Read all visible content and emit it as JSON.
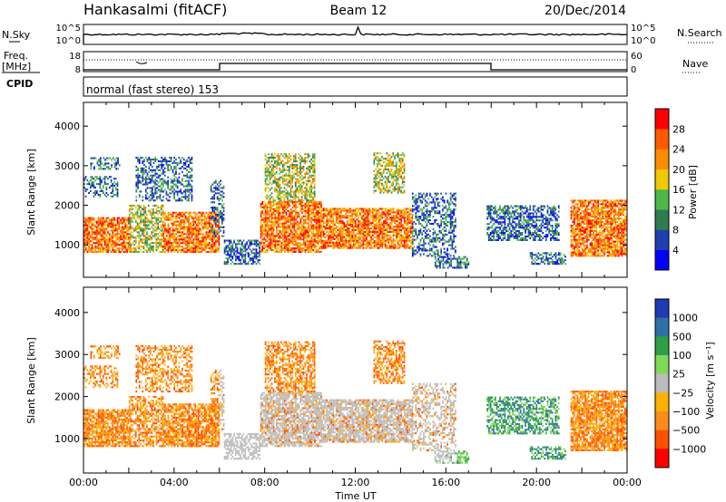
{
  "header": {
    "station": "Hankasalmi (fitACF)",
    "beam": "Beam 12",
    "date": "20/Dec/2014"
  },
  "labels": {
    "nsky": "N.Sky",
    "nsearch": "N.Search",
    "freq_top": "Freq.",
    "freq_unit": "[MHz]",
    "cpid": "CPID",
    "nave": "Nave",
    "mode": "normal (fast stereo) 153",
    "xlabel": "Time UT"
  },
  "noise_panel": {
    "left_ticks": [
      "10^5",
      "10^0"
    ],
    "right_ticks": [
      "10^5",
      "10^0"
    ]
  },
  "freq_panel": {
    "left_ticks": [
      "18",
      "8"
    ],
    "right_ticks": [
      "60",
      "0"
    ]
  },
  "colors": {
    "power": [
      "#0000ff",
      "#1f3fb0",
      "#2e7d4f",
      "#4db84a",
      "#f0c800",
      "#ff8c00",
      "#ff5a00",
      "#ff0000"
    ],
    "velocity": [
      "#ff0000",
      "#ff5000",
      "#ff8c1a",
      "#ffb000",
      "#bbbbbb",
      "#7ed957",
      "#2ea043",
      "#2e6fa6",
      "#1f3ab5"
    ],
    "ground_scatter": "#bebebe"
  },
  "chart_data": [
    {
      "type": "heatmap",
      "name": "power",
      "ylabel": "Slant Range [km]",
      "xlabel": "Time UT",
      "x_ticks": [
        "00:00",
        "04:00",
        "08:00",
        "12:00",
        "16:00",
        "20:00",
        "00:00"
      ],
      "xlim": [
        0,
        24
      ],
      "y_ticks": [
        1000,
        2000,
        3000,
        4000
      ],
      "ylim": [
        180,
        4600
      ],
      "colorbar_label": "Power [dB]",
      "colorbar_ticks": [
        4,
        8,
        12,
        16,
        20,
        24,
        28
      ],
      "clim": [
        0,
        32
      ]
    },
    {
      "type": "heatmap",
      "name": "velocity",
      "ylabel": "Slant Range [km]",
      "xlabel": "Time UT",
      "x_ticks": [
        "00:00",
        "04:00",
        "08:00",
        "12:00",
        "16:00",
        "20:00",
        "00:00"
      ],
      "xlim": [
        0,
        24
      ],
      "y_ticks": [
        1000,
        2000,
        3000,
        4000
      ],
      "ylim": [
        180,
        4600
      ],
      "colorbar_label": "Velocity [m s⁻¹]",
      "colorbar_ticks": [
        "1000",
        "500",
        "100",
        "25",
        "−25",
        "−100",
        "−500",
        "−1000"
      ]
    }
  ]
}
